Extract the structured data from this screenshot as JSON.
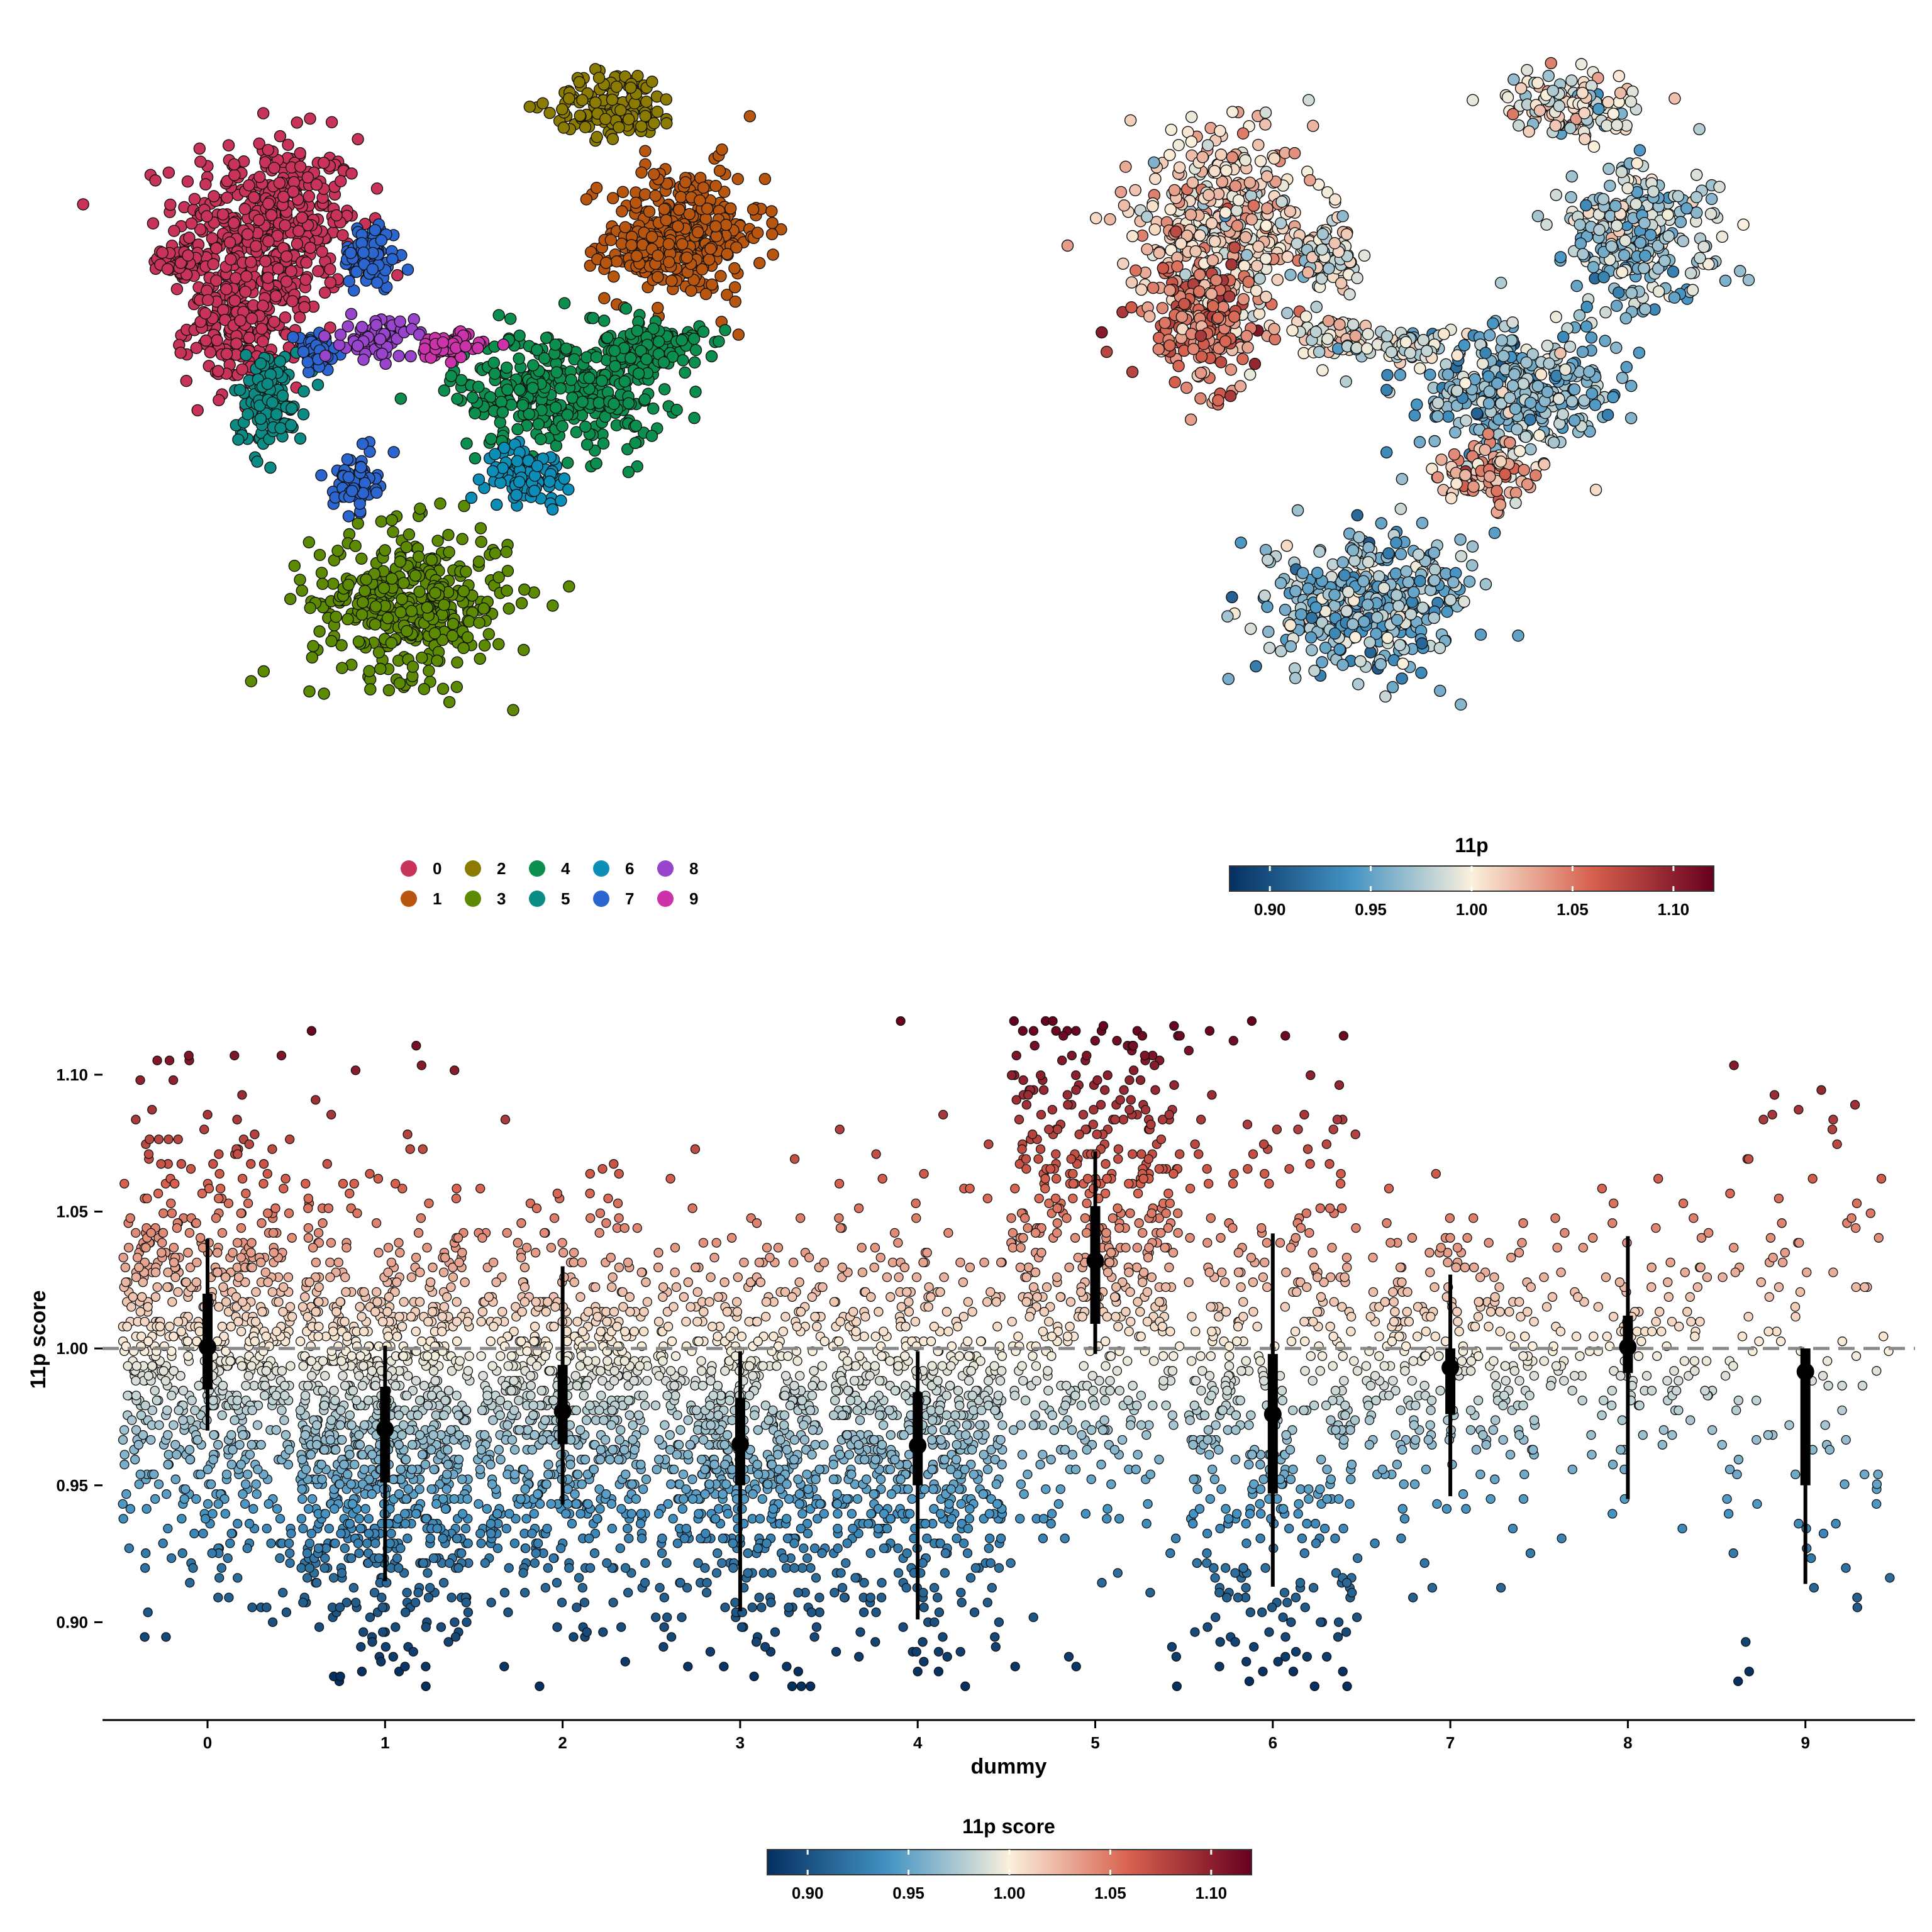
{
  "chart_data": [
    {
      "type": "scatter",
      "xlabel": "",
      "ylabel": "",
      "cluster_ids": [
        "0",
        "1",
        "2",
        "3",
        "4",
        "5",
        "6",
        "7",
        "8",
        "9"
      ],
      "cluster_colors": [
        "#C9335A",
        "#B8560F",
        "#8B7B00",
        "#5C8A00",
        "#0B8F4F",
        "#0A8C84",
        "#0B8FB8",
        "#2B66D0",
        "#9944CC",
        "#CC33AA"
      ],
      "clusters": [
        {
          "id": "0",
          "blobs": [
            [
              2.3,
              7.6,
              1.3,
              1.3
            ],
            [
              2.0,
              6.3,
              0.8,
              0.9
            ],
            [
              1.2,
              7.1,
              0.3,
              0.2
            ]
          ]
        },
        {
          "id": "1",
          "blobs": [
            [
              7.6,
              7.5,
              1.1,
              1.0
            ],
            [
              7.1,
              7.2,
              0.5,
              0.4
            ]
          ]
        },
        {
          "id": "2",
          "blobs": [
            [
              6.7,
              9.2,
              0.9,
              0.5
            ]
          ]
        },
        {
          "id": "3",
          "blobs": [
            [
              4.1,
              2.6,
              1.4,
              1.1
            ]
          ]
        },
        {
          "id": "4",
          "blobs": [
            [
              6.0,
              5.4,
              1.5,
              0.9
            ],
            [
              7.2,
              6.0,
              0.7,
              0.4
            ]
          ]
        },
        {
          "id": "5",
          "blobs": [
            [
              2.3,
              5.3,
              0.5,
              0.7
            ]
          ]
        },
        {
          "id": "6",
          "blobs": [
            [
              5.6,
              4.3,
              0.6,
              0.4
            ]
          ]
        },
        {
          "id": "7",
          "blobs": [
            [
              3.6,
              7.2,
              0.4,
              0.5
            ],
            [
              3.4,
              4.2,
              0.3,
              0.4
            ],
            [
              2.9,
              5.9,
              0.3,
              0.3
            ]
          ]
        },
        {
          "id": "8",
          "blobs": [
            [
              3.7,
              6.1,
              0.5,
              0.3
            ]
          ]
        },
        {
          "id": "9",
          "blobs": [
            [
              4.6,
              6.0,
              0.5,
              0.2
            ]
          ]
        }
      ]
    },
    {
      "type": "scatter",
      "xlabel": "",
      "ylabel": "",
      "color_by": "11p",
      "blob_scores": [
        [
          2.3,
          7.6,
          1.3,
          1.3,
          1.01
        ],
        [
          2.0,
          6.3,
          0.8,
          0.9,
          1.05
        ],
        [
          7.6,
          7.5,
          1.1,
          1.0,
          0.97
        ],
        [
          6.7,
          9.2,
          0.9,
          0.5,
          0.995
        ],
        [
          4.1,
          2.6,
          1.4,
          1.1,
          0.965
        ],
        [
          6.0,
          5.4,
          1.5,
          0.9,
          0.965
        ],
        [
          5.6,
          4.3,
          0.6,
          0.4,
          1.03
        ],
        [
          3.6,
          7.2,
          0.4,
          0.5,
          0.99
        ],
        [
          3.7,
          6.1,
          0.5,
          0.3,
          1.0
        ],
        [
          4.6,
          6.0,
          0.5,
          0.2,
          0.99
        ]
      ],
      "legend_title": "11p",
      "colorbar": {
        "min": 0.88,
        "max": 1.12,
        "ticks": [
          "0.90",
          "0.95",
          "1.00",
          "1.05",
          "1.10"
        ]
      }
    },
    {
      "type": "scatter",
      "subtype": "jitter-with-pointrange",
      "xlabel": "dummy",
      "ylabel": "11p score",
      "categories": [
        "0",
        "1",
        "2",
        "3",
        "4",
        "5",
        "6",
        "7",
        "8",
        "9"
      ],
      "yticks": [
        "0.90",
        "0.95",
        "1.00",
        "1.05",
        "1.10"
      ],
      "ylim": [
        0.87,
        1.125
      ],
      "reference_line": 1.0,
      "medians": [
        1.0005,
        0.9705,
        0.977,
        0.965,
        0.9645,
        1.032,
        0.976,
        0.993,
        1.0005,
        0.9915
      ],
      "q25": [
        0.985,
        0.951,
        0.965,
        0.95,
        0.95,
        1.009,
        0.947,
        0.976,
        0.991,
        0.95
      ],
      "q75": [
        1.02,
        0.986,
        0.994,
        0.982,
        0.984,
        1.052,
        0.998,
        1.0,
        1.012,
        1.0
      ],
      "lower": [
        0.97,
        0.915,
        0.943,
        0.904,
        0.901,
        0.998,
        0.913,
        0.946,
        0.945,
        0.914
      ],
      "upper": [
        1.04,
        1.001,
        1.03,
        0.999,
        0.999,
        1.072,
        1.042,
        1.027,
        1.041,
        0.999
      ],
      "legend_title": "11p score",
      "colorbar": {
        "min": 0.88,
        "max": 1.12,
        "ticks": [
          "0.90",
          "0.95",
          "1.00",
          "1.05",
          "1.10"
        ]
      }
    }
  ]
}
